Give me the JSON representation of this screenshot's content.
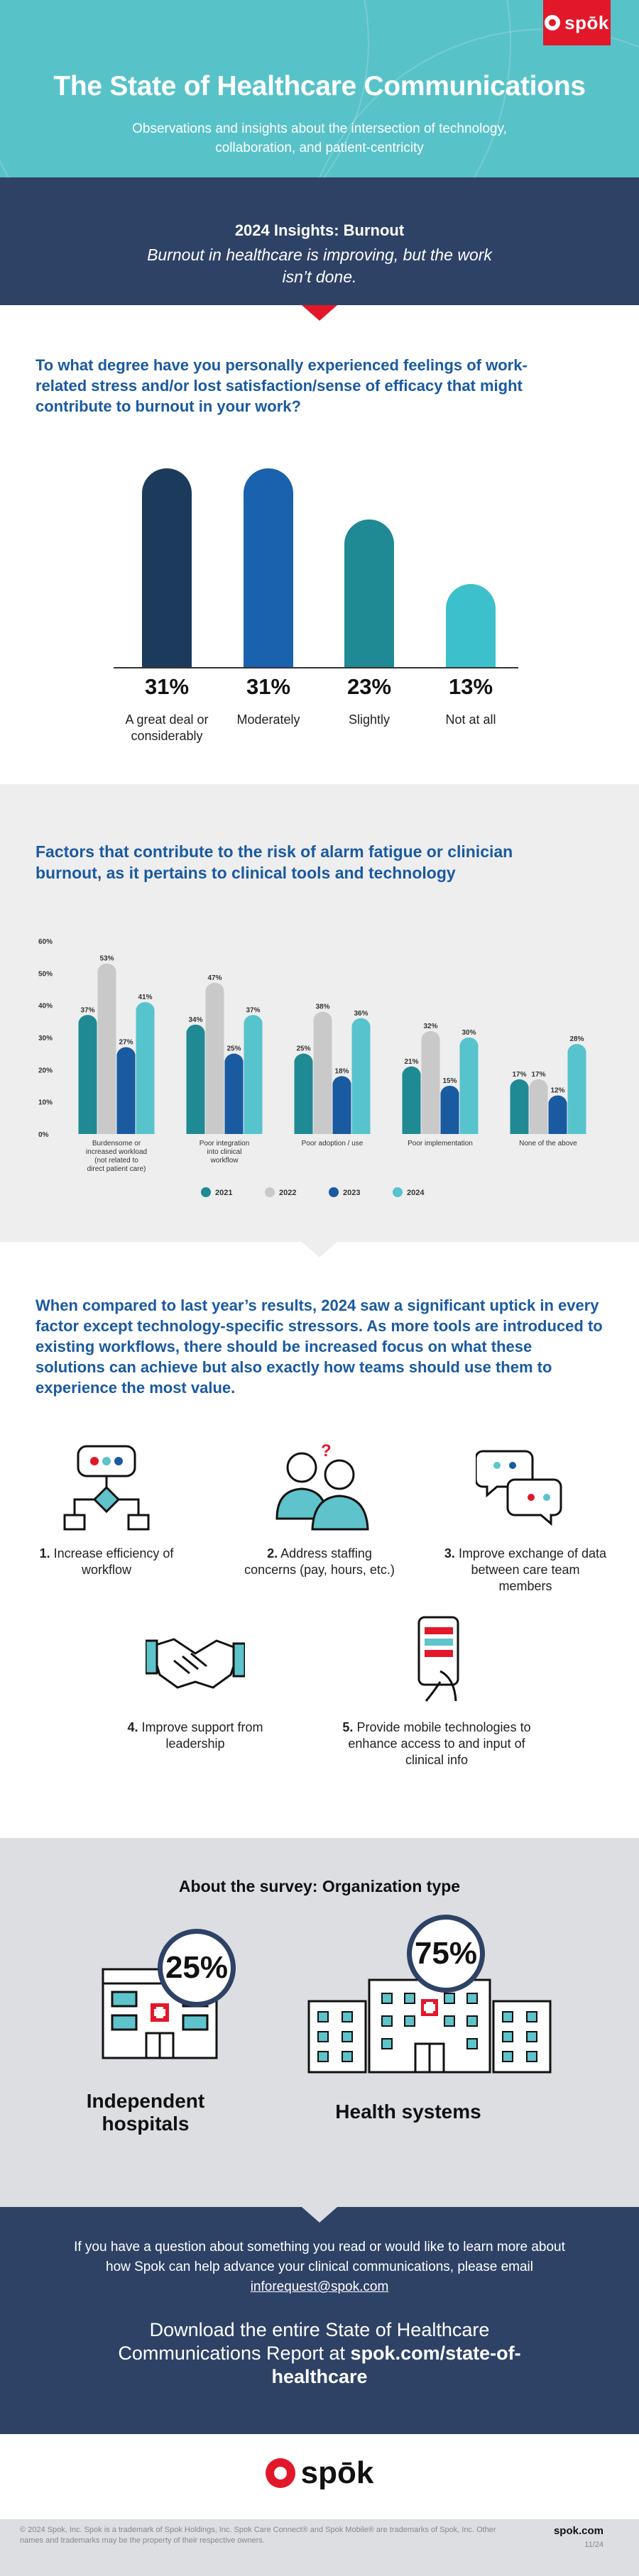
{
  "header": {
    "logo": "spōk",
    "title": "The State of Healthcare Communications",
    "subtitle": "Observations and insights about the intersection of technology, collaboration, and patient-centricity"
  },
  "insight": {
    "heading": "2024 Insights: Burnout",
    "statement": "Burnout in healthcare is improving, but the work isn’t done."
  },
  "q1": {
    "question": "To what degree have you personally experienced feelings of work-related stress and/or lost satisfaction/sense of efficacy that might contribute to burnout in your work?",
    "chart_data": {
      "type": "bar",
      "categories": [
        "A great deal or considerably",
        "Moderately",
        "Slightly",
        "Not at all"
      ],
      "values": [
        31,
        31,
        23,
        13
      ],
      "value_labels": [
        "31%",
        "31%",
        "23%",
        "13%"
      ],
      "colors": [
        "#1c3a5c",
        "#1a62ad",
        "#1f8a93",
        "#3cc0cb"
      ],
      "ylim": [
        0,
        31
      ]
    }
  },
  "factors": {
    "title": "Factors that contribute to the risk of alarm fatigue or clinician burnout, as it pertains to clinical tools and technology",
    "chart_data": {
      "type": "bar",
      "categories": [
        "Burdensome or increased workload (not related to direct patient care)",
        "Poor integration into clinical workflow",
        "Poor adoption / use",
        "Poor implementation",
        "None of the above"
      ],
      "series": [
        {
          "name": "2021",
          "values": [
            37,
            34,
            25,
            21,
            17
          ],
          "color": "#1f8a93"
        },
        {
          "name": "2022",
          "values": [
            53,
            47,
            38,
            32,
            17
          ],
          "color": "#c9c9c9"
        },
        {
          "name": "2023",
          "values": [
            27,
            25,
            18,
            15,
            12
          ],
          "color": "#1a5aa0"
        },
        {
          "name": "2024",
          "values": [
            41,
            37,
            36,
            30,
            28
          ],
          "color": "#57c3cc"
        }
      ],
      "yticks": [
        "0%",
        "10%",
        "20%",
        "30%",
        "40%",
        "50%",
        "60%"
      ],
      "ylim": [
        0,
        60
      ],
      "legend": "bottom"
    }
  },
  "uptick": "When compared to last year’s results, 2024 saw a significant uptick in every factor except technology-specific stressors. As more tools are introduced to existing workflows, there should be increased focus on what these solutions can achieve but also exactly how teams should use them to experience the most value.",
  "priorities": [
    {
      "num": "1.",
      "text": "Increase efficiency of workflow",
      "icon": "workflow-icon"
    },
    {
      "num": "2.",
      "text": "Address staffing concerns (pay, hours, etc.)",
      "icon": "staff-icon"
    },
    {
      "num": "3.",
      "text": "Improve exchange of data between care team members",
      "icon": "chat-icon"
    },
    {
      "num": "4.",
      "text": "Improve support from leadership",
      "icon": "handshake-icon"
    },
    {
      "num": "5.",
      "text": "Provide mobile technologies to enhance access to and input of clinical info",
      "icon": "mobile-icon"
    }
  ],
  "survey": {
    "heading": "About the survey: Organization type",
    "types": [
      {
        "pct": "25%",
        "label": "Independent hospitals"
      },
      {
        "pct": "75%",
        "label": "Health systems"
      }
    ]
  },
  "footer": {
    "question": "If you have a question about something you read or would like to learn more about how Spok can help advance your clinical communications, please email",
    "email": "inforequest@spok.com",
    "download": "Download the entire State of Healthcare Communications Report at",
    "url": "spok.com/state-of-healthcare",
    "brand": "spōk",
    "legal": "© 2024 Spok, Inc. Spok is a trademark of Spok Holdings, Inc. Spok Care Connect® and Spok Mobile® are trademarks of Spok, Inc. Other names and trademarks may be the property of their respective owners.",
    "site": "spok.com",
    "date": "11/24"
  },
  "colors": {
    "teal": "#58c2c9",
    "navy": "#2e4266",
    "red": "#e3172a",
    "blue": "#1a5aa0"
  }
}
